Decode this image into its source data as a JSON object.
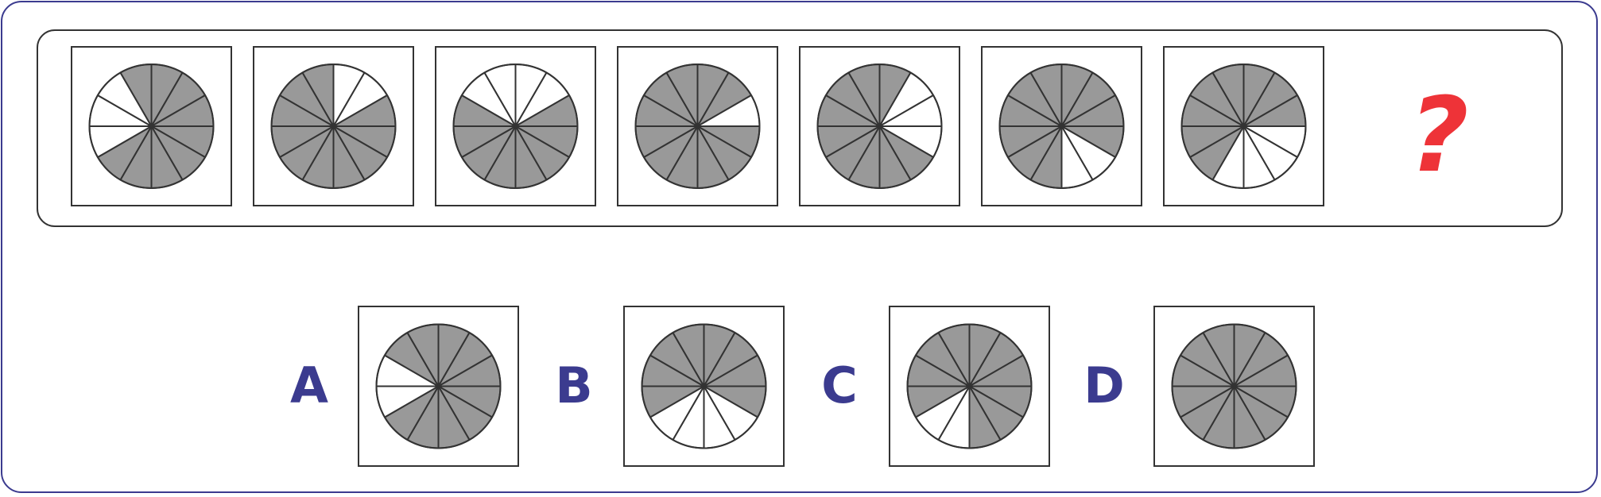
{
  "question_mark": "?",
  "colors": {
    "frame_border": "#3b3b8f",
    "line": "#333333",
    "filled": "#999999",
    "empty": "#ffffff",
    "question_mark": "#ee3338",
    "option_label": "#3b3b8f"
  },
  "sequence": [
    {
      "white_sectors": [
        8,
        9,
        10
      ]
    },
    {
      "white_sectors": [
        0,
        1
      ]
    },
    {
      "white_sectors": [
        10,
        11,
        0,
        1
      ]
    },
    {
      "white_sectors": [
        2
      ]
    },
    {
      "white_sectors": [
        1,
        2,
        3
      ]
    },
    {
      "white_sectors": [
        4,
        5
      ]
    },
    {
      "white_sectors": [
        3,
        4,
        5,
        6
      ]
    }
  ],
  "options": [
    {
      "label": "A",
      "white_sectors": [
        8,
        9
      ]
    },
    {
      "label": "B",
      "white_sectors": [
        4,
        5,
        6,
        7
      ]
    },
    {
      "label": "C",
      "white_sectors": [
        6,
        7
      ]
    },
    {
      "label": "D",
      "white_sectors": []
    }
  ]
}
